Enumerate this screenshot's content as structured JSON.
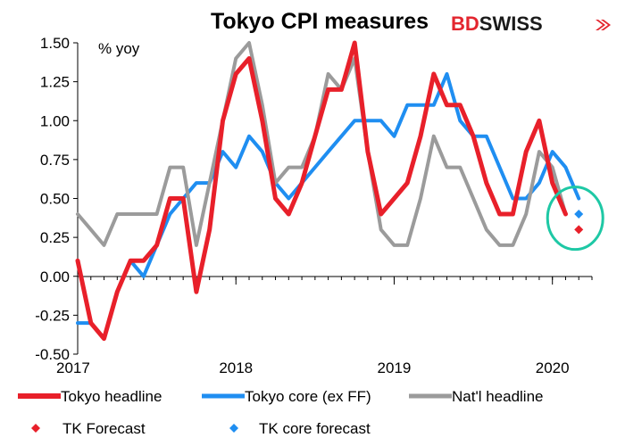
{
  "brand": {
    "part1": "BD",
    "part2": "SWISS",
    "accent_color": "#e3262f"
  },
  "chart_data": {
    "type": "line",
    "title": "Tokyo CPI measures",
    "unit_label": "% yoy",
    "ylim": [
      -0.5,
      1.5
    ],
    "yticks": [
      "1.50",
      "1.25",
      "1.00",
      "0.75",
      "0.50",
      "0.25",
      "0.00",
      "-0.25",
      "-0.50"
    ],
    "ytick_values": [
      1.5,
      1.25,
      1.0,
      0.75,
      0.5,
      0.25,
      0.0,
      -0.25,
      -0.5
    ],
    "xlim": [
      0,
      39
    ],
    "xticks": [
      {
        "label": "2017",
        "index": 0
      },
      {
        "label": "2018",
        "index": 12
      },
      {
        "label": "2019",
        "index": 24
      },
      {
        "label": "2020",
        "index": 36
      }
    ],
    "x_start": "2017-01",
    "grid": false,
    "series": [
      {
        "name": "Tokyo headline",
        "color": "#e8202a",
        "width": 5,
        "values": [
          0.1,
          -0.3,
          -0.4,
          -0.1,
          0.1,
          0.1,
          0.2,
          0.5,
          0.5,
          -0.1,
          0.3,
          1.0,
          1.3,
          1.4,
          1.0,
          0.5,
          0.4,
          0.6,
          0.9,
          1.2,
          1.2,
          1.5,
          0.8,
          0.4,
          0.5,
          0.6,
          0.9,
          1.3,
          1.1,
          1.1,
          0.9,
          0.6,
          0.4,
          0.4,
          0.8,
          1.0,
          0.6,
          0.4
        ]
      },
      {
        "name": "Tokyo core (ex FF)",
        "color": "#1f8ef1",
        "width": 4,
        "values": [
          -0.3,
          -0.3,
          -0.4,
          -0.1,
          0.1,
          0.0,
          0.2,
          0.4,
          0.5,
          0.6,
          0.6,
          0.8,
          0.7,
          0.9,
          0.8,
          0.6,
          0.5,
          0.6,
          0.7,
          0.8,
          0.9,
          1.0,
          1.0,
          1.0,
          0.9,
          1.1,
          1.1,
          1.1,
          1.3,
          1.0,
          0.9,
          0.9,
          0.7,
          0.5,
          0.5,
          0.6,
          0.8,
          0.7,
          0.5
        ]
      },
      {
        "name": "Nat'l headline",
        "color": "#9b9b9b",
        "width": 4,
        "values": [
          0.4,
          0.3,
          0.2,
          0.4,
          0.4,
          0.4,
          0.4,
          0.7,
          0.7,
          0.2,
          0.6,
          1.0,
          1.4,
          1.5,
          1.1,
          0.6,
          0.7,
          0.7,
          0.9,
          1.3,
          1.2,
          1.4,
          0.8,
          0.3,
          0.2,
          0.2,
          0.5,
          0.9,
          0.7,
          0.7,
          0.5,
          0.3,
          0.2,
          0.2,
          0.4,
          0.8,
          0.7,
          0.4
        ]
      }
    ],
    "forecasts": [
      {
        "name": "TK Forecast",
        "color": "#e8202a",
        "index": 38,
        "value": 0.3
      },
      {
        "name": "TK core forecast",
        "color": "#1f8ef1",
        "index": 38,
        "value": 0.4
      }
    ],
    "highlight_ellipse": {
      "color": "#1ec8a5"
    }
  }
}
